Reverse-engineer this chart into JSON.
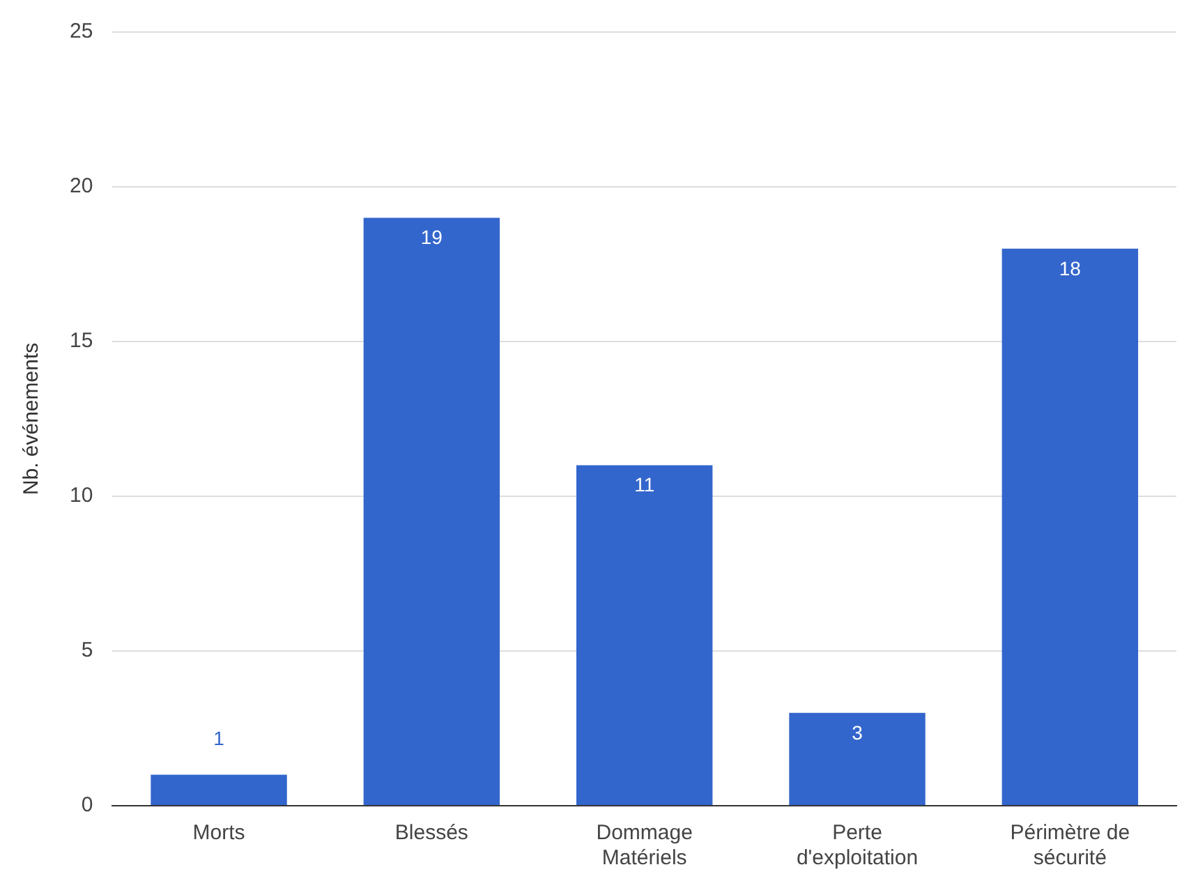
{
  "chart_data": {
    "type": "bar",
    "ylabel": "Nb. événements",
    "categories": [
      "Morts",
      "Blessés",
      "Dommage Matériels",
      "Perte d'exploitation",
      "Périmètre de sécurité"
    ],
    "values": [
      1,
      19,
      11,
      3,
      18
    ],
    "color": "#3366cc",
    "ylim": [
      0,
      25
    ],
    "yticks": [
      0,
      5,
      10,
      15,
      20,
      25
    ],
    "grid": "y",
    "data_labels": true,
    "legend": false
  }
}
